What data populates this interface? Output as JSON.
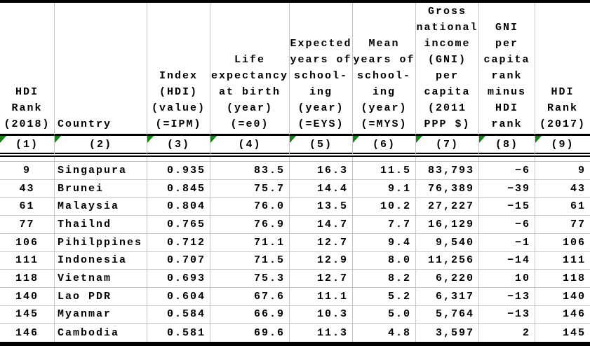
{
  "table": {
    "columns": [
      {
        "title": "HDI\nRank\n(2018)",
        "index_label": "(1)"
      },
      {
        "title": "Country",
        "index_label": "(2)"
      },
      {
        "title": "Index\n(HDI)\n(value)\n(=IPM)",
        "index_label": "(3)"
      },
      {
        "title": "Life\nexpectancy\nat birth\n(year)\n(=e0)",
        "index_label": "(4)"
      },
      {
        "title": "Expected\nyears of\nschool-\ning\n(year)\n(=EYS)",
        "index_label": "(5)"
      },
      {
        "title": "Mean\nyears of\nschool-\ning\n(year)\n(=MYS)",
        "index_label": "(6)"
      },
      {
        "title": "Gross\nnational\nincome\n(GNI)\nper\ncapita\n(2011\nPPP $)",
        "index_label": "(7)"
      },
      {
        "title": "GNI\nper\ncapita\nrank\nminus\nHDI\nrank",
        "index_label": "(8)"
      },
      {
        "title": "HDI\nRank\n(2017)",
        "index_label": "(9)"
      }
    ],
    "rows": [
      [
        "9",
        "Singapura",
        "0.935",
        "83.5",
        "16.3",
        "11.5",
        "83,793",
        "−6",
        "9"
      ],
      [
        "43",
        "Brunei",
        "0.845",
        "75.7",
        "14.4",
        "9.1",
        "76,389",
        "−39",
        "43"
      ],
      [
        "61",
        "Malaysia",
        "0.804",
        "76.0",
        "13.5",
        "10.2",
        "27,227",
        "−15",
        "61"
      ],
      [
        "77",
        "Thailnd",
        "0.765",
        "76.9",
        "14.7",
        "7.7",
        "16,129",
        "−6",
        "77"
      ],
      [
        "106",
        "Pihilppines",
        "0.712",
        "71.1",
        "12.7",
        "9.4",
        "9,540",
        "−1",
        "106"
      ],
      [
        "111",
        "Indonesia",
        "0.707",
        "71.5",
        "12.9",
        "8.0",
        "11,256",
        "−14",
        "111"
      ],
      [
        "118",
        "Vietnam",
        "0.693",
        "75.3",
        "12.7",
        "8.2",
        "6,220",
        "10",
        "118"
      ],
      [
        "140",
        "Lao PDR",
        "0.604",
        "67.6",
        "11.1",
        "5.2",
        "6,317",
        "−13",
        "140"
      ],
      [
        "145",
        "Myanmar",
        "0.584",
        "66.9",
        "10.3",
        "5.0",
        "5,764",
        "−13",
        "146"
      ],
      [
        "146",
        "Cambodia",
        "0.581",
        "69.6",
        "11.3",
        "4.8",
        "3,597",
        "2",
        "145"
      ]
    ]
  },
  "colors": {
    "border_black": "#000000",
    "grid_line": "#c6c6c6",
    "error_triangle_green": "#1a7e1a",
    "text": "#000000",
    "background": "#ffffff"
  }
}
